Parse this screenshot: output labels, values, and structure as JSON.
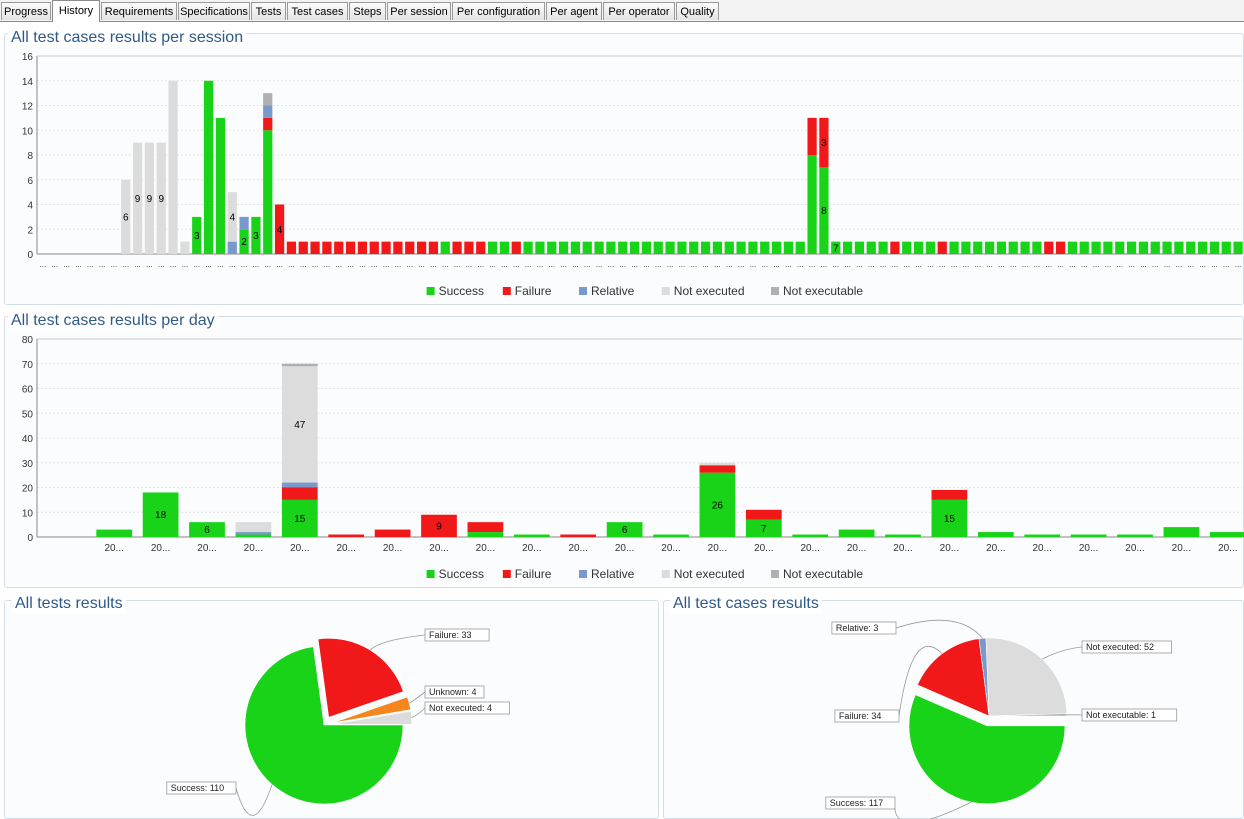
{
  "tabs": [
    "Progress",
    "History",
    "Requirements",
    "Specifications",
    "Tests",
    "Test cases",
    "Steps",
    "Per session",
    "Per configuration",
    "Per agent",
    "Per operator",
    "Quality"
  ],
  "active_tab": "History",
  "colors": {
    "success": "#19d319",
    "failure": "#f01818",
    "relative": "#7799cc",
    "not_executed": "#dcdcdc",
    "not_executable": "#b0b0b0",
    "unknown": "#f5861e"
  },
  "legend": [
    "Success",
    "Failure",
    "Relative",
    "Not executed",
    "Not executable"
  ],
  "chart_data": [
    {
      "type": "bar",
      "stacked": true,
      "title": "All test cases results per session",
      "xlabel": "",
      "ylabel": "",
      "ylim": [
        0,
        16
      ],
      "yticks": [
        "0",
        "2",
        "4",
        "6",
        "8",
        "10",
        "12",
        "14",
        "16"
      ],
      "x_tick_label": "...",
      "series_keys": [
        "success",
        "failure",
        "relative",
        "not_executed",
        "not_executable"
      ],
      "values": [
        [
          0,
          0,
          0,
          0,
          0
        ],
        [
          0,
          0,
          0,
          0,
          0
        ],
        [
          0,
          0,
          0,
          0,
          0
        ],
        [
          0,
          0,
          0,
          0,
          0
        ],
        [
          0,
          0,
          0,
          0,
          0
        ],
        [
          0,
          0,
          0,
          0,
          0
        ],
        [
          0,
          0,
          0,
          0,
          0
        ],
        [
          0,
          0,
          0,
          6,
          0
        ],
        [
          0,
          0,
          0,
          9,
          0
        ],
        [
          0,
          0,
          0,
          9,
          0
        ],
        [
          0,
          0,
          0,
          9,
          0
        ],
        [
          0,
          0,
          0,
          14,
          0
        ],
        [
          0,
          0,
          0,
          1,
          0
        ],
        [
          3,
          0,
          0,
          0,
          0
        ],
        [
          14,
          0,
          0,
          0,
          0
        ],
        [
          11,
          0,
          0,
          0,
          0
        ],
        [
          0,
          0,
          1,
          4,
          0
        ],
        [
          2,
          0,
          1,
          0,
          0
        ],
        [
          3,
          0,
          0,
          0,
          0
        ],
        [
          10,
          1,
          1,
          0,
          1
        ],
        [
          0,
          4,
          0,
          0,
          0
        ],
        [
          0,
          1,
          0,
          0,
          0
        ],
        [
          0,
          1,
          0,
          0,
          0
        ],
        [
          0,
          1,
          0,
          0,
          0
        ],
        [
          0,
          1,
          0,
          0,
          0
        ],
        [
          0,
          1,
          0,
          0,
          0
        ],
        [
          0,
          1,
          0,
          0,
          0
        ],
        [
          0,
          1,
          0,
          0,
          0
        ],
        [
          0,
          1,
          0,
          0,
          0
        ],
        [
          0,
          1,
          0,
          0,
          0
        ],
        [
          0,
          1,
          0,
          0,
          0
        ],
        [
          0,
          1,
          0,
          0,
          0
        ],
        [
          0,
          1,
          0,
          0,
          0
        ],
        [
          0,
          1,
          0,
          0,
          0
        ],
        [
          1,
          0,
          0,
          0,
          0
        ],
        [
          0,
          1,
          0,
          0,
          0
        ],
        [
          0,
          1,
          0,
          0,
          0
        ],
        [
          0,
          1,
          0,
          0,
          0
        ],
        [
          1,
          0,
          0,
          0,
          0
        ],
        [
          1,
          0,
          0,
          0,
          0
        ],
        [
          0,
          1,
          0,
          0,
          0
        ],
        [
          1,
          0,
          0,
          0,
          0
        ],
        [
          1,
          0,
          0,
          0,
          0
        ],
        [
          1,
          0,
          0,
          0,
          0
        ],
        [
          1,
          0,
          0,
          0,
          0
        ],
        [
          1,
          0,
          0,
          0,
          0
        ],
        [
          1,
          0,
          0,
          0,
          0
        ],
        [
          1,
          0,
          0,
          0,
          0
        ],
        [
          1,
          0,
          0,
          0,
          0
        ],
        [
          1,
          0,
          0,
          0,
          0
        ],
        [
          1,
          0,
          0,
          0,
          0
        ],
        [
          1,
          0,
          0,
          0,
          0
        ],
        [
          1,
          0,
          0,
          0,
          0
        ],
        [
          1,
          0,
          0,
          0,
          0
        ],
        [
          1,
          0,
          0,
          0,
          0
        ],
        [
          1,
          0,
          0,
          0,
          0
        ],
        [
          1,
          0,
          0,
          0,
          0
        ],
        [
          1,
          0,
          0,
          0,
          0
        ],
        [
          1,
          0,
          0,
          0,
          0
        ],
        [
          1,
          0,
          0,
          0,
          0
        ],
        [
          1,
          0,
          0,
          0,
          0
        ],
        [
          1,
          0,
          0,
          0,
          0
        ],
        [
          1,
          0,
          0,
          0,
          0
        ],
        [
          1,
          0,
          0,
          0,
          0
        ],
        [
          1,
          0,
          0,
          0,
          0
        ],
        [
          8,
          3,
          0,
          0,
          0
        ],
        [
          7,
          4,
          0,
          0,
          0
        ],
        [
          1,
          0,
          0,
          0,
          0
        ],
        [
          1,
          0,
          0,
          0,
          0
        ],
        [
          1,
          0,
          0,
          0,
          0
        ],
        [
          1,
          0,
          0,
          0,
          0
        ],
        [
          1,
          0,
          0,
          0,
          0
        ],
        [
          0,
          1,
          0,
          0,
          0
        ],
        [
          1,
          0,
          0,
          0,
          0
        ],
        [
          1,
          0,
          0,
          0,
          0
        ],
        [
          1,
          0,
          0,
          0,
          0
        ],
        [
          0,
          1,
          0,
          0,
          0
        ],
        [
          1,
          0,
          0,
          0,
          0
        ],
        [
          1,
          0,
          0,
          0,
          0
        ],
        [
          1,
          0,
          0,
          0,
          0
        ],
        [
          1,
          0,
          0,
          0,
          0
        ],
        [
          1,
          0,
          0,
          0,
          0
        ],
        [
          1,
          0,
          0,
          0,
          0
        ],
        [
          1,
          0,
          0,
          0,
          0
        ],
        [
          1,
          0,
          0,
          0,
          0
        ],
        [
          0,
          1,
          0,
          0,
          0
        ],
        [
          0,
          1,
          0,
          0,
          0
        ],
        [
          1,
          0,
          0,
          0,
          0
        ],
        [
          1,
          0,
          0,
          0,
          0
        ],
        [
          1,
          0,
          0,
          0,
          0
        ],
        [
          1,
          0,
          0,
          0,
          0
        ],
        [
          1,
          0,
          0,
          0,
          0
        ],
        [
          1,
          0,
          0,
          0,
          0
        ],
        [
          1,
          0,
          0,
          0,
          0
        ],
        [
          1,
          0,
          0,
          0,
          0
        ],
        [
          1,
          0,
          0,
          0,
          0
        ],
        [
          1,
          0,
          0,
          0,
          0
        ],
        [
          1,
          0,
          0,
          0,
          0
        ],
        [
          1,
          0,
          0,
          0,
          0
        ],
        [
          1,
          0,
          0,
          0,
          0
        ],
        [
          1,
          0,
          0,
          0,
          0
        ],
        [
          1,
          0,
          0,
          0,
          0
        ]
      ],
      "data_labels": [
        {
          "bar": 7,
          "series": 3,
          "text": "6"
        },
        {
          "bar": 8,
          "series": 3,
          "text": "9"
        },
        {
          "bar": 9,
          "series": 3,
          "text": "9"
        },
        {
          "bar": 10,
          "series": 3,
          "text": "9"
        },
        {
          "bar": 13,
          "series": 0,
          "text": "3"
        },
        {
          "bar": 16,
          "series": 3,
          "text": "4"
        },
        {
          "bar": 17,
          "series": 0,
          "text": "2"
        },
        {
          "bar": 18,
          "series": 0,
          "text": "3"
        },
        {
          "bar": 20,
          "series": 1,
          "text": "4"
        },
        {
          "bar": 66,
          "series": 0,
          "text": "8"
        },
        {
          "bar": 66,
          "series": 1,
          "text": "3"
        },
        {
          "bar": 67,
          "series": 0,
          "text": "7"
        },
        {
          "bar": 67,
          "series": 1,
          "text": "4"
        }
      ],
      "legend_position": "bottom"
    },
    {
      "type": "bar",
      "stacked": true,
      "title": "All test cases results per day",
      "xlabel": "",
      "ylabel": "",
      "ylim": [
        0,
        80
      ],
      "yticks": [
        "0",
        "10",
        "20",
        "30",
        "40",
        "50",
        "60",
        "70",
        "80"
      ],
      "x_tick_label": "20...",
      "series_keys": [
        "success",
        "failure",
        "relative",
        "not_executed",
        "not_executable"
      ],
      "values": [
        [
          3,
          0,
          0,
          0,
          0
        ],
        [
          18,
          0,
          0,
          0,
          0
        ],
        [
          6,
          0,
          0,
          0,
          0
        ],
        [
          1,
          0,
          1,
          4,
          0
        ],
        [
          15,
          5,
          2,
          47,
          1
        ],
        [
          0,
          1,
          0,
          0,
          0
        ],
        [
          0,
          3,
          0,
          0,
          0
        ],
        [
          0,
          9,
          0,
          0,
          0
        ],
        [
          2,
          4,
          0,
          0,
          0
        ],
        [
          1,
          0,
          0,
          0,
          0
        ],
        [
          0,
          1,
          0,
          0,
          0
        ],
        [
          6,
          0,
          0,
          0,
          0
        ],
        [
          1,
          0,
          0,
          0,
          0
        ],
        [
          26,
          3,
          0,
          1,
          0
        ],
        [
          7,
          4,
          0,
          0,
          0
        ],
        [
          1,
          0,
          0,
          0,
          0
        ],
        [
          3,
          0,
          0,
          0,
          0
        ],
        [
          1,
          0,
          0,
          0,
          0
        ],
        [
          15,
          4,
          0,
          0,
          0
        ],
        [
          2,
          0,
          0,
          0,
          0
        ],
        [
          1,
          0,
          0,
          0,
          0
        ],
        [
          1,
          0,
          0,
          0,
          0
        ],
        [
          1,
          0,
          0,
          0,
          0
        ],
        [
          4,
          0,
          0,
          0,
          0
        ],
        [
          2,
          0,
          0,
          0,
          0
        ]
      ],
      "data_labels": [
        {
          "bar": 1,
          "series": 0,
          "text": "18"
        },
        {
          "bar": 2,
          "series": 0,
          "text": "6"
        },
        {
          "bar": 4,
          "series": 0,
          "text": "15"
        },
        {
          "bar": 4,
          "series": 3,
          "text": "47"
        },
        {
          "bar": 7,
          "series": 1,
          "text": "9"
        },
        {
          "bar": 11,
          "series": 0,
          "text": "6"
        },
        {
          "bar": 13,
          "series": 0,
          "text": "26"
        },
        {
          "bar": 14,
          "series": 0,
          "text": "7"
        },
        {
          "bar": 18,
          "series": 0,
          "text": "15"
        }
      ],
      "legend_position": "bottom"
    },
    {
      "type": "pie",
      "title": "All tests results",
      "slices": [
        {
          "key": "success",
          "label": "Success: 110",
          "value": 110,
          "exploded": false
        },
        {
          "key": "failure",
          "label": "Failure: 33",
          "value": 33,
          "exploded": true
        },
        {
          "key": "unknown",
          "label": "Unknown: 4",
          "value": 4,
          "exploded": true
        },
        {
          "key": "not_executed",
          "label": "Not executed: 4",
          "value": 4,
          "exploded": true
        }
      ]
    },
    {
      "type": "pie",
      "title": "All test cases results",
      "slices": [
        {
          "key": "success",
          "label": "Success: 117",
          "value": 117,
          "exploded": true
        },
        {
          "key": "failure",
          "label": "Failure: 34",
          "value": 34,
          "exploded": false
        },
        {
          "key": "relative",
          "label": "Relative: 3",
          "value": 3,
          "exploded": false
        },
        {
          "key": "not_executed",
          "label": "Not executed: 52",
          "value": 52,
          "exploded": false
        },
        {
          "key": "not_executable",
          "label": "Not executable: 1",
          "value": 1,
          "exploded": false
        }
      ]
    }
  ]
}
